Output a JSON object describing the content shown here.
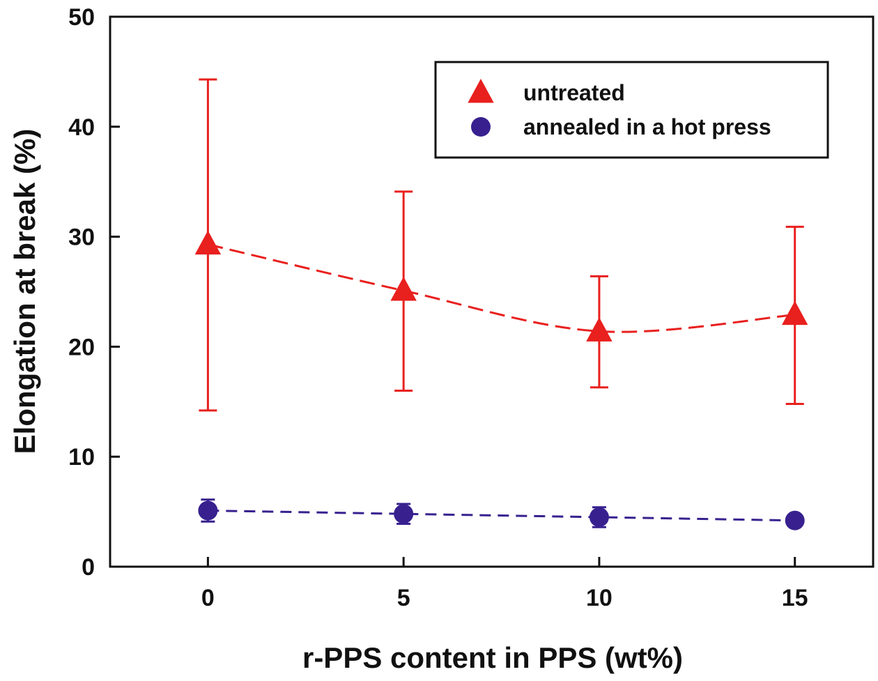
{
  "chart_data": {
    "type": "line",
    "xlabel": "r-PPS content in PPS (wt%)",
    "ylabel": "Elongation at break (%)",
    "xlim": [
      -2.5,
      17.0
    ],
    "ylim": [
      0,
      50
    ],
    "x_ticks": [
      0,
      5,
      10,
      15
    ],
    "y_ticks": [
      0,
      10,
      20,
      30,
      40,
      50
    ],
    "grid": false,
    "legend_position": "top-right",
    "series": [
      {
        "name": "untreated",
        "marker": "triangle",
        "line_style": "dashed",
        "color": "#e8201e",
        "x": [
          0,
          5,
          10,
          15
        ],
        "y": [
          29.3,
          25.1,
          21.4,
          22.9
        ],
        "err_low": [
          14.2,
          16.0,
          16.3,
          14.8
        ],
        "err_high": [
          44.3,
          34.1,
          26.4,
          30.9
        ]
      },
      {
        "name": "annealed in a hot press",
        "marker": "circle",
        "line_style": "dashed",
        "color": "#38218f",
        "x": [
          0,
          5,
          10,
          15
        ],
        "y": [
          5.1,
          4.8,
          4.5,
          4.2
        ],
        "err_low": [
          4.1,
          3.9,
          3.6,
          4.2
        ],
        "err_high": [
          6.1,
          5.7,
          5.4,
          4.2
        ]
      }
    ]
  }
}
